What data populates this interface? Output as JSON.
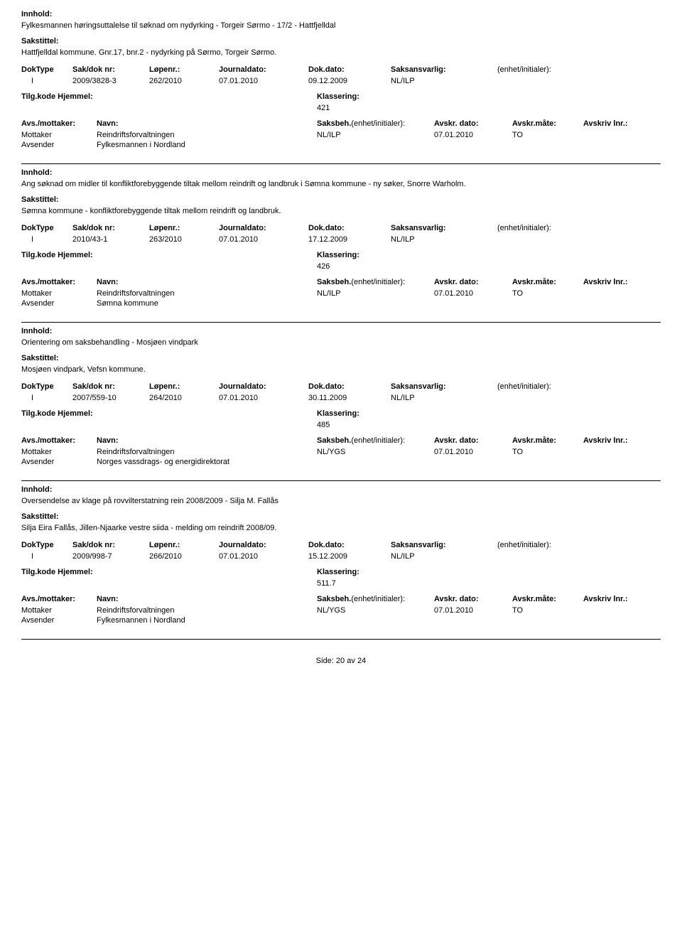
{
  "labels": {
    "innhold": "Innhold:",
    "sakstittel": "Sakstittel:",
    "doktype": "DokType",
    "sakdok": "Sak/dok nr:",
    "lopenr": "Løpenr.:",
    "journaldato": "Journaldato:",
    "dokdato": "Dok.dato:",
    "saksansvarlig": "Saksansvarlig:",
    "enhet": "(enhet/initialer):",
    "tilgkode": "Tilg.kode",
    "hjemmel": "Hjemmel:",
    "klassering": "Klassering:",
    "avsmottaker": "Avs./mottaker:",
    "navn": "Navn:",
    "saksbeh": "Saksbeh.",
    "saksbeh_enhet": "(enhet/initialer):",
    "avskrdato": "Avskr. dato:",
    "avskrmate": "Avskr.måte:",
    "avskrivlnr": "Avskriv lnr.:",
    "mottaker": "Mottaker",
    "avsender": "Avsender"
  },
  "records": [
    {
      "innhold": "Fylkesmannen høringsuttalelse til søknad om nydyrking - Torgeir Sørmo - 17/2 - Hattfjelldal",
      "sakstittel": "Hattfjelldal kommune. Gnr.17, bnr.2 - nydyrking på Sørmo, Torgeir Sørmo.",
      "doktype": "I",
      "sakdok": "2009/3828-3",
      "lopenr": "262/2010",
      "journaldato": "07.01.2010",
      "dokdato": "09.12.2009",
      "saksansvarlig": "NL/ILP",
      "klassering": "421",
      "mottaker_navn": "Reindriftsforvaltningen",
      "saksbeh": "NL/ILP",
      "avskrdato": "07.01.2010",
      "avskrmate": "TO",
      "avsender_navn": "Fylkesmannen i Nordland"
    },
    {
      "innhold": "Ang søknad om midler til konfliktforebyggende tiltak mellom reindrift og landbruk i Sømna kommune - ny søker, Snorre Warholm.",
      "sakstittel": "Sømna kommune - konfliktforebyggende tiltak mellom reindrift og landbruk.",
      "doktype": "I",
      "sakdok": "2010/43-1",
      "lopenr": "263/2010",
      "journaldato": "07.01.2010",
      "dokdato": "17.12.2009",
      "saksansvarlig": "NL/ILP",
      "klassering": "426",
      "mottaker_navn": "Reindriftsforvaltningen",
      "saksbeh": "NL/ILP",
      "avskrdato": "07.01.2010",
      "avskrmate": "TO",
      "avsender_navn": "Sømna kommune"
    },
    {
      "innhold": "Orientering om saksbehandling - Mosjøen vindpark",
      "sakstittel": "Mosjøen vindpark, Vefsn kommune.",
      "doktype": "I",
      "sakdok": "2007/559-10",
      "lopenr": "264/2010",
      "journaldato": "07.01.2010",
      "dokdato": "30.11.2009",
      "saksansvarlig": "NL/ILP",
      "klassering": "485",
      "mottaker_navn": "Reindriftsforvaltningen",
      "saksbeh": "NL/YGS",
      "avskrdato": "07.01.2010",
      "avskrmate": "TO",
      "avsender_navn": "Norges vassdrags- og energidirektorat"
    },
    {
      "innhold": "Oversendelse av klage på rovvilterstatning rein 2008/2009 - Silja M. Fallås",
      "sakstittel": "Silja Eira Fallås, Jillen-Njaarke vestre siida - melding om reindrift 2008/09.",
      "doktype": "I",
      "sakdok": "2009/998-7",
      "lopenr": "266/2010",
      "journaldato": "07.01.2010",
      "dokdato": "15.12.2009",
      "saksansvarlig": "NL/ILP",
      "klassering": "511.7",
      "mottaker_navn": "Reindriftsforvaltningen",
      "saksbeh": "NL/YGS",
      "avskrdato": "07.01.2010",
      "avskrmate": "TO",
      "avsender_navn": "Fylkesmannen i Nordland"
    }
  ],
  "footer": {
    "side": "Side:",
    "page": "20",
    "av": "av",
    "total": "24"
  }
}
